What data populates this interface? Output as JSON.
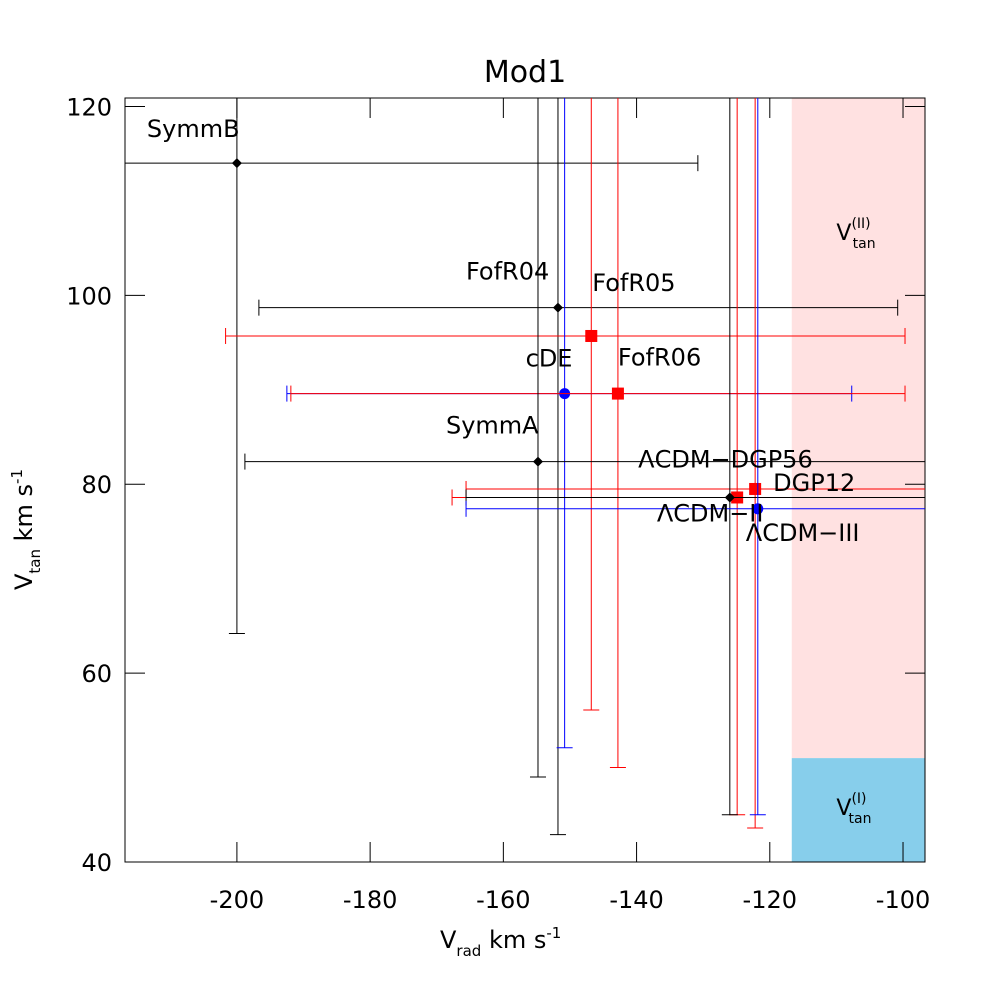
{
  "chart_data": {
    "type": "scatter",
    "title": "Mod1",
    "x_label": {
      "main": "V",
      "sub": "rad",
      "rest": " km  s",
      "sup": "-1"
    },
    "y_label": {
      "main": "V",
      "sub": "tan",
      "rest": " km  s",
      "sup": "-1"
    },
    "xlim": [
      -216.8,
      -96.7
    ],
    "ylim": [
      40,
      120.9
    ],
    "xticks": [
      -200,
      -180,
      -160,
      -140,
      -120,
      -100
    ],
    "yticks": [
      40,
      60,
      80,
      100,
      120
    ],
    "regions": [
      {
        "label": {
          "main": "V",
          "sub": "tan",
          "sup": "(II)"
        },
        "color": "#ffe1e1",
        "x": [
          -116.7,
          -96.7
        ],
        "y": [
          51,
          120.9
        ]
      },
      {
        "label": {
          "main": "V",
          "sub": "tan",
          "sup": "(I)"
        },
        "color": "#87ceeb",
        "x": [
          -116.7,
          -96.7
        ],
        "y": [
          40,
          51
        ]
      }
    ],
    "points": [
      {
        "name": "SymmB",
        "color": "#000000",
        "marker": "diamond",
        "x": -200,
        "y": 114,
        "xlow": -220,
        "xhigh": -130.8,
        "ylow": 64.2,
        "yhigh": 125
      },
      {
        "name": "FofR04",
        "color": "#000000",
        "marker": "diamond",
        "x": -151.8,
        "y": 98.7,
        "xlow": -196.7,
        "xhigh": -100.8,
        "ylow": 42.9,
        "yhigh": 125
      },
      {
        "name": "FofR05",
        "color": "#ff0000",
        "marker": "square",
        "x": -146.8,
        "y": 95.7,
        "xlow": -201.7,
        "xhigh": -99.7,
        "ylow": 56.1,
        "yhigh": 125
      },
      {
        "name": "cDE",
        "color": "#0000ff",
        "marker": "circle",
        "x": -150.8,
        "y": 89.6,
        "xlow": -192.5,
        "xhigh": -107.7,
        "ylow": 52.1,
        "yhigh": 125
      },
      {
        "name": "FofR06",
        "color": "#ff0000",
        "marker": "square",
        "x": -142.8,
        "y": 89.6,
        "xlow": -191.9,
        "xhigh": -99.7,
        "ylow": 50.0,
        "yhigh": 125
      },
      {
        "name": "SymmA",
        "color": "#000000",
        "marker": "diamond",
        "x": -154.8,
        "y": 82.4,
        "xlow": -198.8,
        "xhigh": -90,
        "ylow": 49.0,
        "yhigh": 125
      },
      {
        "name": "ΛCDM−DGP56",
        "color": "#ff0000",
        "marker": "square",
        "x": -124.9,
        "y": 78.6,
        "xlow": -167.7,
        "xhigh": -90,
        "ylow": 45.0,
        "yhigh": 125
      },
      {
        "name": "DGP12",
        "color": "#ff0000",
        "marker": "square",
        "x": -122.2,
        "y": 79.5,
        "xlow": -165.6,
        "xhigh": -90,
        "ylow": 43.6,
        "yhigh": 125
      },
      {
        "name": "ΛCDM−II",
        "color": "#000000",
        "marker": "diamond",
        "x": -126,
        "y": 78.6,
        "xlow": -165.6,
        "xhigh": -90,
        "ylow": 45.0,
        "yhigh": 125
      },
      {
        "name": "ΛCDM−III",
        "color": "#0000ff",
        "marker": "circle",
        "x": -121.8,
        "y": 77.4,
        "xlow": -165.6,
        "xhigh": -90,
        "ylow": 45.0,
        "yhigh": 125
      }
    ]
  }
}
